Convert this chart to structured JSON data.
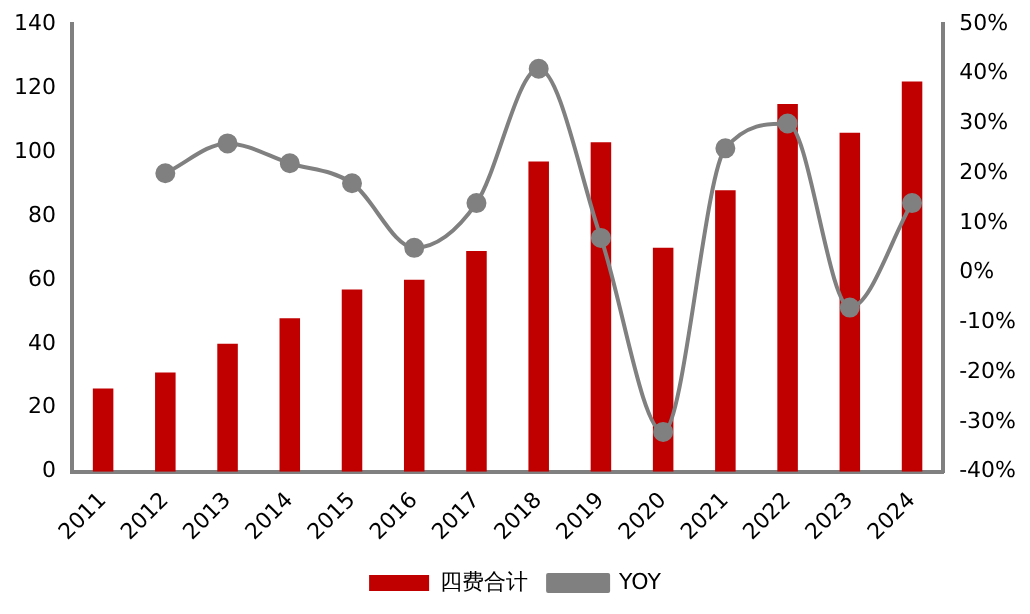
{
  "chart_data": {
    "type": "bar",
    "categories": [
      "2011",
      "2012",
      "2013",
      "2014",
      "2015",
      "2016",
      "2017",
      "2018",
      "2019",
      "2020",
      "2021",
      "2022",
      "2023",
      "2024"
    ],
    "series": [
      {
        "name": "四费合计",
        "color": "#c00000",
        "values": [
          26,
          31,
          40,
          48,
          57,
          60,
          69,
          97,
          103,
          70,
          88,
          115,
          106,
          122
        ]
      },
      {
        "name": "YOY",
        "type": "line",
        "axis": "y2",
        "color": "#808080",
        "marker": "circle",
        "values": [
          null,
          20,
          26,
          22,
          18,
          5,
          14,
          41,
          7,
          -32,
          25,
          30,
          -7,
          14
        ]
      }
    ],
    "ylim": [
      0,
      140
    ],
    "yticks": [
      0,
      20,
      40,
      60,
      80,
      100,
      120,
      140
    ],
    "y2lim": [
      -40,
      50
    ],
    "y2ticks": [
      {
        "value": -40,
        "label": "-40%"
      },
      {
        "value": -30,
        "label": "-30%"
      },
      {
        "value": -20,
        "label": "-20%"
      },
      {
        "value": -10,
        "label": "-10%"
      },
      {
        "value": 0,
        "label": "0%"
      },
      {
        "value": 10,
        "label": "10%"
      },
      {
        "value": 20,
        "label": "20%"
      },
      {
        "value": 30,
        "label": "30%"
      },
      {
        "value": 40,
        "label": "40%"
      },
      {
        "value": 50,
        "label": "50%"
      }
    ],
    "legend": "bottom",
    "grid": false
  }
}
